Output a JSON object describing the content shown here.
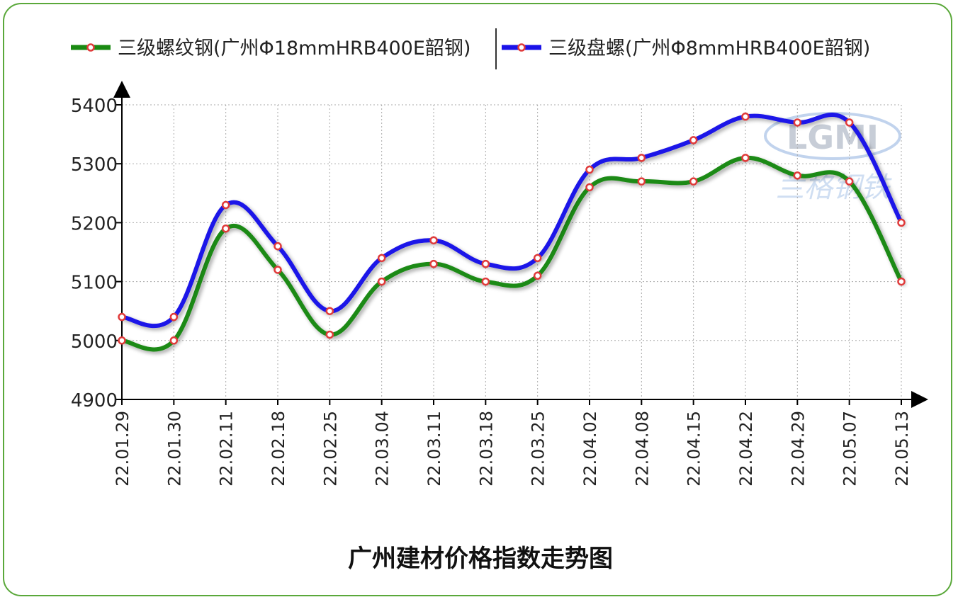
{
  "chart_data": {
    "type": "line",
    "title": "广州建材价格指数走势图",
    "x": [
      "22.01.29",
      "22.01.30",
      "22.02.11",
      "22.02.18",
      "22.02.25",
      "22.03.04",
      "22.03.11",
      "22.03.18",
      "22.03.25",
      "22.04.02",
      "22.04.08",
      "22.04.15",
      "22.04.22",
      "22.04.29",
      "22.05.07",
      "22.05.13"
    ],
    "series": [
      {
        "name": "三级螺纹钢(广州Φ18mmHRB400E韶钢)",
        "color": "#1a8a12",
        "values": [
          5000,
          5000,
          5190,
          5120,
          5010,
          5100,
          5130,
          5100,
          5110,
          5260,
          5270,
          5270,
          5310,
          5280,
          5270,
          5100
        ]
      },
      {
        "name": "三级盘螺(广州Φ8mmHRB400E韶钢)",
        "color": "#1a12e8",
        "values": [
          5040,
          5040,
          5230,
          5160,
          5050,
          5140,
          5170,
          5130,
          5140,
          5290,
          5310,
          5340,
          5380,
          5370,
          5370,
          5200
        ]
      }
    ],
    "yticks": [
      4900,
      5000,
      5100,
      5200,
      5300,
      5400
    ],
    "ylim": [
      4900,
      5400
    ],
    "grid": true,
    "legend": "top",
    "watermark": {
      "logo": "LGMI",
      "text": "兰格钢铁"
    }
  }
}
